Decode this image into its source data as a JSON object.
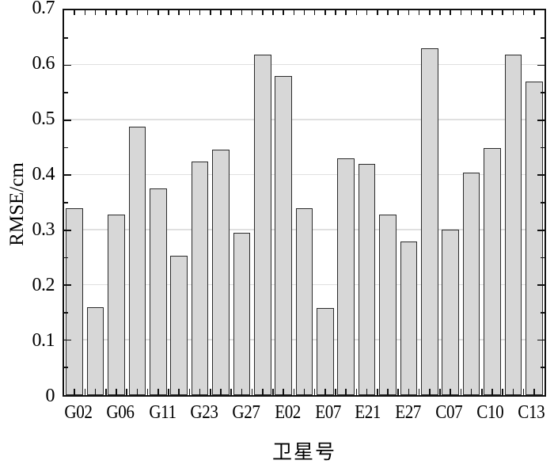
{
  "figure": {
    "ylabel": "RMSE/cm",
    "xlabel": "卫星号",
    "background": "#ffffff",
    "axis_color": "#111111",
    "grid_color": "#e0e0e0",
    "bar_fill": "#d7d7d7",
    "bar_edge": "#2b2b2b"
  },
  "chart_data": {
    "type": "bar",
    "title": "",
    "xlabel": "卫星号",
    "ylabel": "RMSE/cm",
    "ylim": [
      0,
      0.7
    ],
    "ytick_step": 0.1,
    "ytick_labels": [
      "0",
      "0.1",
      "0.2",
      "0.3",
      "0.4",
      "0.5",
      "0.6",
      "0.7"
    ],
    "grid": "horizontal-major",
    "legend": "none",
    "categories": [
      "G02",
      "",
      "G06",
      "",
      "G11",
      "",
      "G23",
      "",
      "G27",
      "",
      "E02",
      "",
      "E07",
      "",
      "E21",
      "",
      "E27",
      "",
      "C07",
      "",
      "C10",
      "",
      "C13"
    ],
    "values": [
      0.34,
      0.16,
      0.328,
      0.488,
      0.376,
      0.254,
      0.425,
      0.446,
      0.296,
      0.62,
      0.58,
      0.34,
      0.159,
      0.43,
      0.421,
      0.328,
      0.28,
      0.631,
      0.301,
      0.405,
      0.45,
      0.62,
      0.571
    ],
    "labeled_categories": [
      "G02",
      "G06",
      "G11",
      "G23",
      "G27",
      "E02",
      "E07",
      "E21",
      "E27",
      "C07",
      "C10",
      "C13"
    ]
  }
}
